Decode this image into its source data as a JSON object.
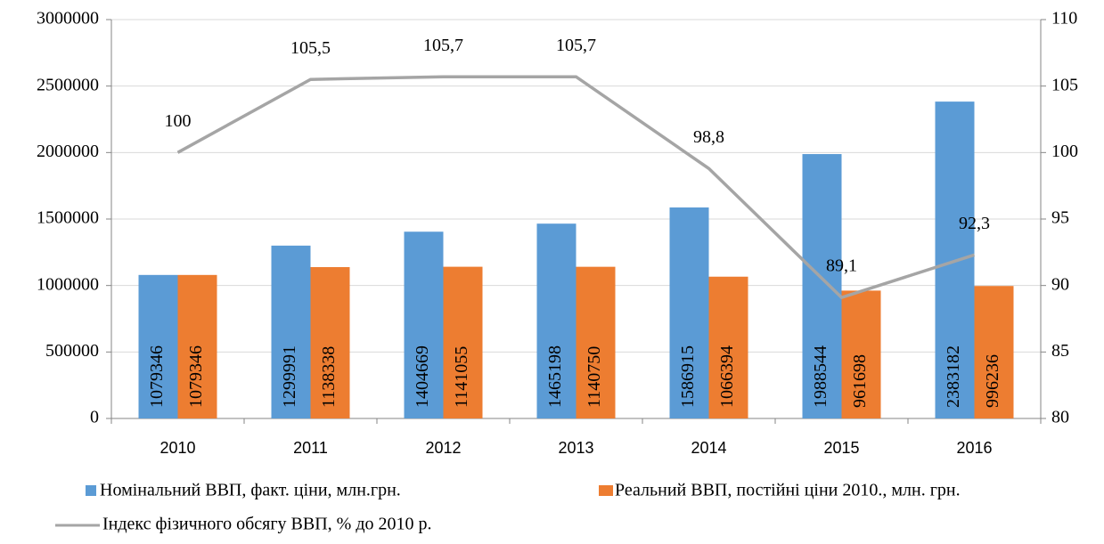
{
  "chart_data": {
    "type": "bar",
    "categories": [
      "2010",
      "2011",
      "2012",
      "2013",
      "2014",
      "2015",
      "2016"
    ],
    "series": [
      {
        "name": "Номінальний ВВП, факт. ціни, млн.грн.",
        "color": "#5b9bd5",
        "values": [
          1079346,
          1299991,
          1404669,
          1465198,
          1586915,
          1988544,
          2383182
        ]
      },
      {
        "name": "Реальний ВВП, постійні ціни 2010., млн. грн.",
        "color": "#ed7d31",
        "values": [
          1079346,
          1138338,
          1141055,
          1140750,
          1066394,
          961698,
          996236
        ]
      },
      {
        "name": "Індекс фізичного обсягу ВВП, %  до 2010 р.",
        "color": "#a5a5a5",
        "type": "line",
        "axis": "y2",
        "values": [
          100,
          105.5,
          105.7,
          105.7,
          98.8,
          89.1,
          92.3
        ],
        "value_labels": [
          "100",
          "105,5",
          "105,7",
          "105,7",
          "98,8",
          "89,1",
          "92,3"
        ]
      }
    ],
    "ylim": [
      0,
      3000000
    ],
    "yticks": [
      0,
      500000,
      1000000,
      1500000,
      2000000,
      2500000,
      3000000
    ],
    "y2lim": [
      80,
      110
    ],
    "y2ticks": [
      80,
      85,
      90,
      95,
      100,
      105,
      110
    ],
    "grid": true,
    "legend": "bottom"
  }
}
